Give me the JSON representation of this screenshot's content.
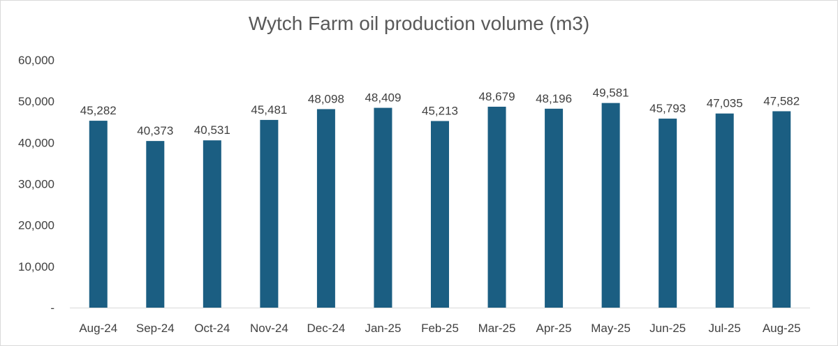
{
  "chart_data": {
    "type": "bar",
    "title": "Wytch Farm oil production volume (m3)",
    "xlabel": "",
    "ylabel": "",
    "categories": [
      "Aug-24",
      "Sep-24",
      "Oct-24",
      "Nov-24",
      "Dec-24",
      "Jan-25",
      "Feb-25",
      "Mar-25",
      "Apr-25",
      "May-25",
      "Jun-25",
      "Jul-25",
      "Aug-25"
    ],
    "values": [
      45282,
      40373,
      40531,
      45481,
      48098,
      48409,
      45213,
      48679,
      48196,
      49581,
      45793,
      47035,
      47582
    ],
    "data_labels": [
      "45,282",
      "40,373",
      "40,531",
      "45,481",
      "48,098",
      "48,409",
      "45,213",
      "48,679",
      "48,196",
      "49,581",
      "45,793",
      "47,035",
      "47,582"
    ],
    "ylim": [
      0,
      60000
    ],
    "y_ticks": [
      0,
      10000,
      20000,
      30000,
      40000,
      50000,
      60000
    ],
    "y_tick_labels": [
      "-",
      "10,000",
      "20,000",
      "30,000",
      "40,000",
      "50,000",
      "60,000"
    ],
    "bar_color": "#1b5e82",
    "grid": false,
    "legend": "none"
  }
}
